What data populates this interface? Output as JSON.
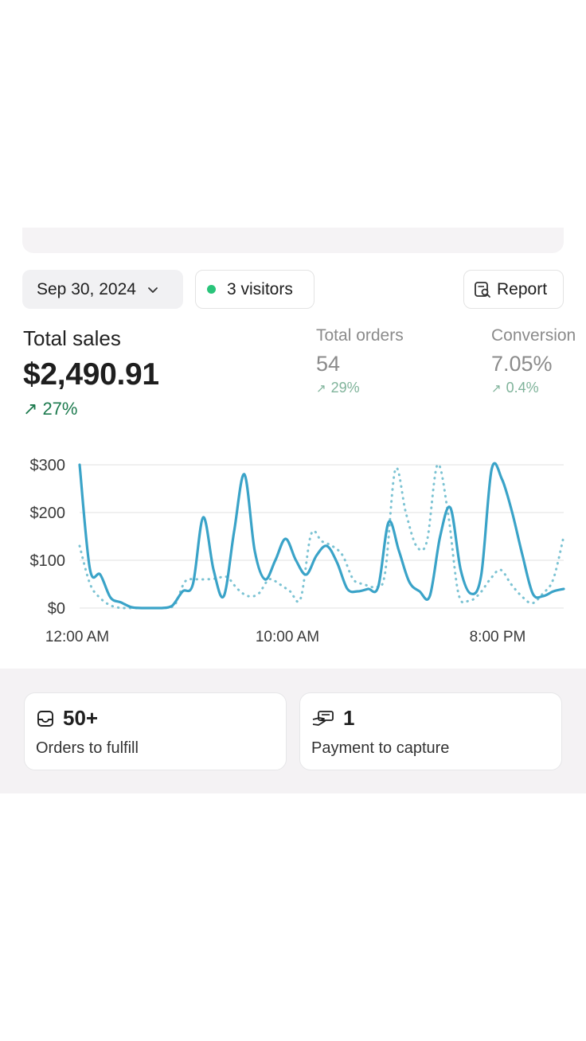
{
  "toolbar": {
    "date_label": "Sep 30, 2024",
    "visitors_label": "3 visitors",
    "report_label": "Report"
  },
  "metrics": {
    "total_sales": {
      "label": "Total sales",
      "value": "$2,490.91",
      "delta": "27%"
    },
    "total_orders": {
      "label": "Total orders",
      "value": "54",
      "delta": "29%"
    },
    "conversion": {
      "label": "Conversion",
      "value": "7.05%",
      "delta": "0.4%"
    }
  },
  "colors": {
    "accent": "#3aa3c8",
    "comparison": "#7cc3d3",
    "positive": "#1c7a4e",
    "visitor_dot": "#29c47a"
  },
  "chart_data": {
    "type": "line",
    "y_ticks": [
      "$300",
      "$200",
      "$100",
      "$0"
    ],
    "x_ticks": [
      "12:00 AM",
      "10:00 AM",
      "8:00 PM"
    ],
    "ylim": [
      0,
      300
    ],
    "grid": true,
    "series": [
      {
        "style": "solid",
        "values": [
          300,
          82,
          70,
          22,
          12,
          2,
          0,
          0,
          0,
          5,
          35,
          50,
          190,
          80,
          25,
          160,
          280,
          120,
          60,
          100,
          145,
          100,
          70,
          110,
          130,
          95,
          40,
          35,
          40,
          45,
          180,
          120,
          55,
          35,
          25,
          150,
          210,
          80,
          30,
          70,
          290,
          270,
          200,
          110,
          30,
          25,
          35,
          40
        ]
      },
      {
        "style": "dotted",
        "values": [
          130,
          50,
          20,
          5,
          0,
          0,
          0,
          0,
          0,
          5,
          55,
          60,
          60,
          62,
          65,
          40,
          25,
          30,
          60,
          50,
          35,
          20,
          155,
          140,
          130,
          110,
          60,
          50,
          45,
          70,
          290,
          200,
          130,
          140,
          300,
          200,
          30,
          15,
          30,
          60,
          80,
          50,
          25,
          10,
          30,
          60,
          150
        ]
      }
    ]
  },
  "tasks": [
    {
      "icon": "inbox-icon",
      "count": "50+",
      "label": "Orders to fulfill"
    },
    {
      "icon": "payment-hand-icon",
      "count": "1",
      "label": "Payment to capture"
    }
  ]
}
